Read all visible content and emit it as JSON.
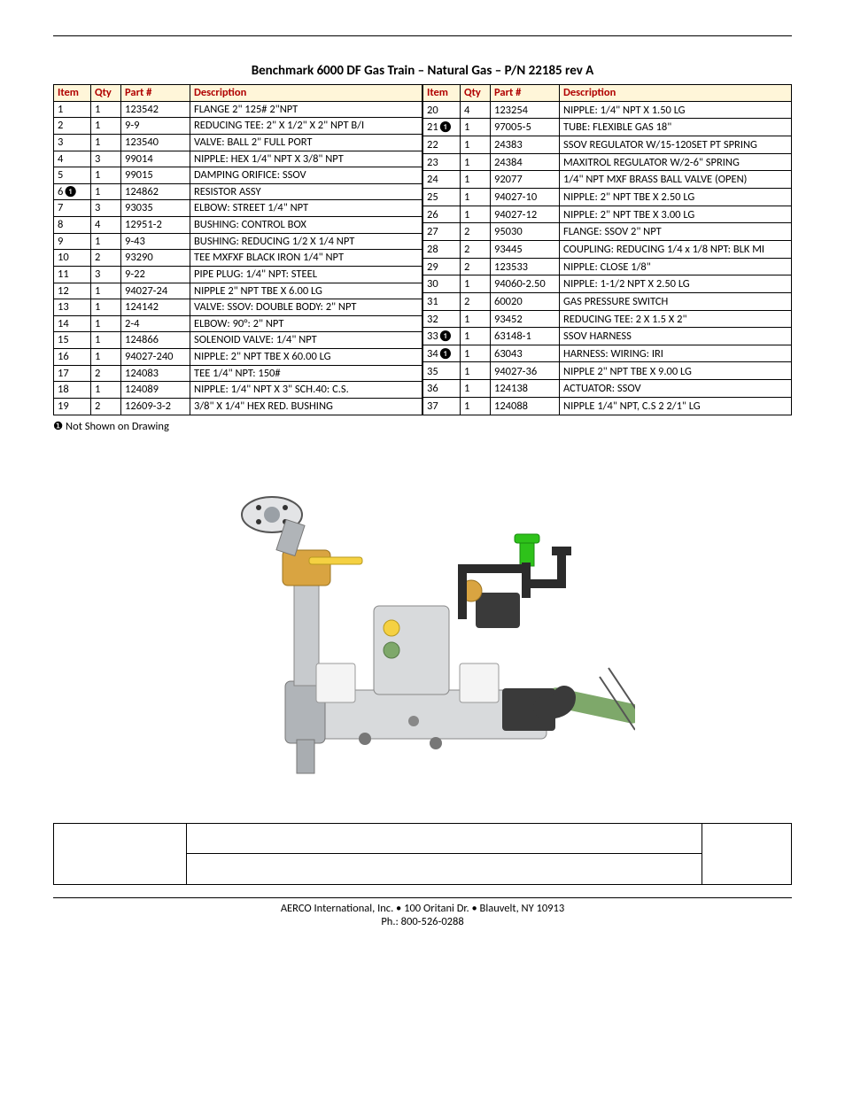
{
  "title": "Benchmark 6000 DF Gas Train – Natural Gas – P/N 22185 rev A",
  "headers": {
    "item": "Item",
    "qty": "Qty",
    "part": "Part #",
    "desc": "Description"
  },
  "footnote_marker": "❶",
  "footnote_text": "Not Shown on Drawing",
  "left_rows": [
    {
      "item": "1",
      "qty": "1",
      "part": "123542",
      "desc": "FLANGE 2\" 125# 2\"NPT"
    },
    {
      "item": "2",
      "qty": "1",
      "part": "9-9",
      "desc": "REDUCING TEE: 2\" X 1/2\" X 2\" NPT B/I"
    },
    {
      "item": "3",
      "qty": "1",
      "part": "123540",
      "desc": "VALVE: BALL 2\" FULL PORT"
    },
    {
      "item": "4",
      "qty": "3",
      "part": "99014",
      "desc": "NIPPLE: HEX 1/4\" NPT X 3/8\" NPT"
    },
    {
      "item": "5",
      "qty": "1",
      "part": "99015",
      "desc": "DAMPING ORIFICE: SSOV"
    },
    {
      "item": "6❶",
      "qty": "1",
      "part": "124862",
      "desc": "RESISTOR ASSY"
    },
    {
      "item": "7",
      "qty": "3",
      "part": "93035",
      "desc": "ELBOW: STREET 1/4\" NPT"
    },
    {
      "item": "8",
      "qty": "4",
      "part": "12951-2",
      "desc": "BUSHING: CONTROL BOX"
    },
    {
      "item": "9",
      "qty": "1",
      "part": "9-43",
      "desc": "BUSHING: REDUCING 1/2 X 1/4 NPT"
    },
    {
      "item": "10",
      "qty": "2",
      "part": "93290",
      "desc": "TEE MXFXF BLACK IRON 1/4\" NPT"
    },
    {
      "item": "11",
      "qty": "3",
      "part": "9-22",
      "desc": "PIPE PLUG: 1/4\" NPT: STEEL"
    },
    {
      "item": "12",
      "qty": "1",
      "part": "94027-24",
      "desc": "NIPPLE 2\" NPT TBE X 6.00 LG"
    },
    {
      "item": "13",
      "qty": "1",
      "part": "124142",
      "desc": "VALVE: SSOV: DOUBLE BODY: 2\" NPT"
    },
    {
      "item": "14",
      "qty": "1",
      "part": "2-4",
      "desc": "ELBOW: 90°: 2\" NPT"
    },
    {
      "item": "15",
      "qty": "1",
      "part": "124866",
      "desc": "SOLENOID VALVE: 1/4\" NPT"
    },
    {
      "item": "16",
      "qty": "1",
      "part": "94027-240",
      "desc": "NIPPLE: 2\" NPT TBE X 60.00 LG"
    },
    {
      "item": "17",
      "qty": "2",
      "part": "124083",
      "desc": "TEE 1/4\" NPT: 150#"
    },
    {
      "item": "18",
      "qty": "1",
      "part": "124089",
      "desc": "NIPPLE: 1/4\" NPT X 3\"  SCH.40: C.S."
    },
    {
      "item": "19",
      "qty": "2",
      "part": "12609-3-2",
      "desc": "3/8\" X 1/4\" HEX RED. BUSHING"
    }
  ],
  "right_rows": [
    {
      "item": "20",
      "qty": "4",
      "part": "123254",
      "desc": "NIPPLE: 1/4\" NPT X 1.50 LG"
    },
    {
      "item": "21❶",
      "qty": "1",
      "part": "97005-5",
      "desc": "TUBE: FLEXIBLE GAS 18\""
    },
    {
      "item": "22",
      "qty": "1",
      "part": "24383",
      "desc": "SSOV REGULATOR W/15-120SET PT SPRING"
    },
    {
      "item": "23",
      "qty": "1",
      "part": "24384",
      "desc": "MAXITROL REGULATOR W/2-6\" SPRING"
    },
    {
      "item": "24",
      "qty": "1",
      "part": "92077",
      "desc": "1/4\" NPT MXF BRASS BALL VALVE (OPEN)"
    },
    {
      "item": "25",
      "qty": "1",
      "part": "94027-10",
      "desc": "NIPPLE: 2\" NPT TBE X 2.50 LG"
    },
    {
      "item": "26",
      "qty": "1",
      "part": "94027-12",
      "desc": "NIPPLE: 2\" NPT TBE X 3.00 LG"
    },
    {
      "item": "27",
      "qty": "2",
      "part": "95030",
      "desc": "FLANGE: SSOV 2\" NPT"
    },
    {
      "item": "28",
      "qty": "2",
      "part": "93445",
      "desc": "COUPLING: REDUCING 1/4 x 1/8 NPT: BLK MI"
    },
    {
      "item": "29",
      "qty": "2",
      "part": "123533",
      "desc": "NIPPLE: CLOSE 1/8\""
    },
    {
      "item": "30",
      "qty": "1",
      "part": "94060-2.50",
      "desc": "NIPPLE: 1-1/2 NPT X 2.50 LG"
    },
    {
      "item": "31",
      "qty": "2",
      "part": "60020",
      "desc": "GAS PRESSURE SWITCH"
    },
    {
      "item": "32",
      "qty": "1",
      "part": "93452",
      "desc": "REDUCING TEE: 2 X 1.5 X 2\""
    },
    {
      "item": "33❶",
      "qty": "1",
      "part": "63148-1",
      "desc": "SSOV HARNESS"
    },
    {
      "item": "34❶",
      "qty": "1",
      "part": "63043",
      "desc": "HARNESS: WIRING: IRI"
    },
    {
      "item": "35",
      "qty": "1",
      "part": "94027-36",
      "desc": "NIPPLE 2\" NPT TBE X 9.00 LG"
    },
    {
      "item": "36",
      "qty": "1",
      "part": "124138",
      "desc": "ACTUATOR: SSOV"
    },
    {
      "item": "37",
      "qty": "1",
      "part": "124088",
      "desc": "NIPPLE 1/4\" NPT, C.S  2 2/1\"  LG"
    }
  ],
  "diagram": {
    "colors": {
      "flange_gray": "#6b7280",
      "brass": "#d9a441",
      "handle_yellow": "#f5d142",
      "body_light": "#d8dadc",
      "body_mid": "#b0b4b8",
      "black": "#2b2b2b",
      "green_pipe": "#7ea86a",
      "bright_green": "#2ec21a",
      "dark": "#3a3a3a"
    }
  },
  "footer": {
    "line1": "AERCO International, Inc. • 100 Oritani Dr. •  Blauvelt, NY 10913",
    "line2": "Ph.: 800-526-0288"
  }
}
